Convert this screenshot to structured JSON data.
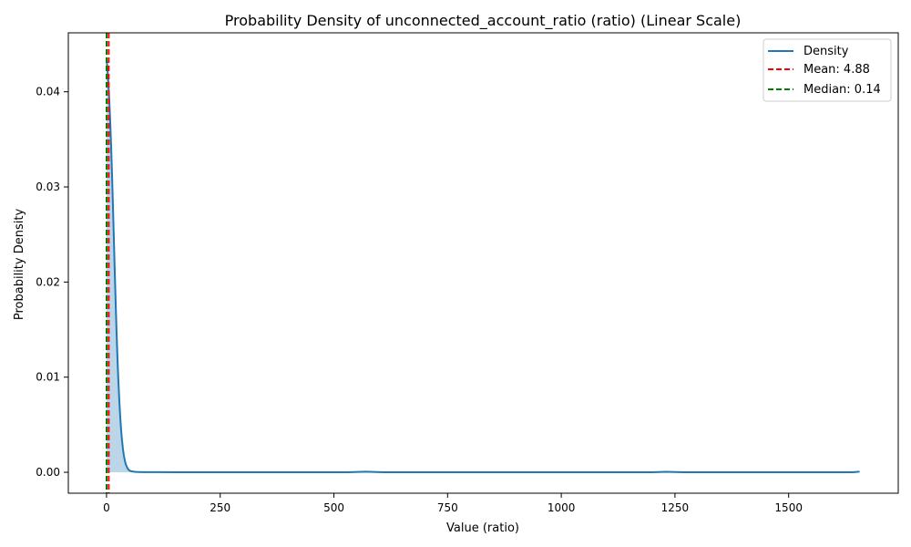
{
  "chart_data": {
    "type": "area",
    "title": "Probability Density of unconnected_account_ratio (ratio) (Linear Scale)",
    "xlabel": "Value (ratio)",
    "ylabel": "Probability Density",
    "xlim": [
      -84,
      1741
    ],
    "ylim": [
      -0.0022,
      0.0462
    ],
    "x_ticks": [
      0,
      250,
      500,
      750,
      1000,
      1250,
      1500
    ],
    "x_tick_labels": [
      "0",
      "250",
      "500",
      "750",
      "1000",
      "1250",
      "1500"
    ],
    "y_ticks": [
      0.0,
      0.01,
      0.02,
      0.03,
      0.04
    ],
    "y_tick_labels": [
      "0.00",
      "0.01",
      "0.02",
      "0.03",
      "0.04"
    ],
    "legend_position": "top-right",
    "series": [
      {
        "name": "Density",
        "color": "#1f77b4",
        "fill_color": "#1f77b4",
        "x": [
          0,
          2,
          4,
          6,
          8,
          10,
          12,
          14,
          16,
          18,
          20,
          22,
          24,
          26,
          28,
          30,
          32,
          34,
          36,
          38,
          40,
          42,
          44,
          46,
          48,
          50,
          55,
          60,
          65,
          70,
          80,
          90,
          100,
          120,
          150,
          170,
          190,
          250,
          300,
          400,
          500,
          530,
          570,
          610,
          700,
          800,
          1000,
          1100,
          1200,
          1230,
          1270,
          1400,
          1500,
          1600,
          1640,
          1656
        ],
        "y": [
          0.0435,
          0.0425,
          0.041,
          0.0392,
          0.037,
          0.0345,
          0.0315,
          0.0282,
          0.0248,
          0.0213,
          0.018,
          0.0149,
          0.0121,
          0.0097,
          0.0077,
          0.0059,
          0.0045,
          0.0034,
          0.0025,
          0.0018,
          0.0013,
          0.0009,
          0.00065,
          0.00045,
          0.0003,
          0.0002,
          0.0001,
          6e-05,
          4e-05,
          3e-05,
          2e-05,
          2e-05,
          2e-05,
          1.5e-05,
          1e-05,
          8e-06,
          3e-06,
          2e-06,
          2e-06,
          2e-06,
          2e-06,
          1e-05,
          6e-05,
          1e-05,
          2e-06,
          2e-06,
          2e-06,
          2e-06,
          5e-06,
          5e-05,
          5e-06,
          2e-06,
          2e-06,
          2e-06,
          5e-06,
          6e-05
        ]
      }
    ],
    "reference_lines": [
      {
        "name": "Mean: 4.88",
        "value": 4.88,
        "color": "#ff0000",
        "style": "dashed"
      },
      {
        "name": "Median: 0.14",
        "value": 0.14,
        "color": "#008000",
        "style": "dashed"
      }
    ]
  }
}
